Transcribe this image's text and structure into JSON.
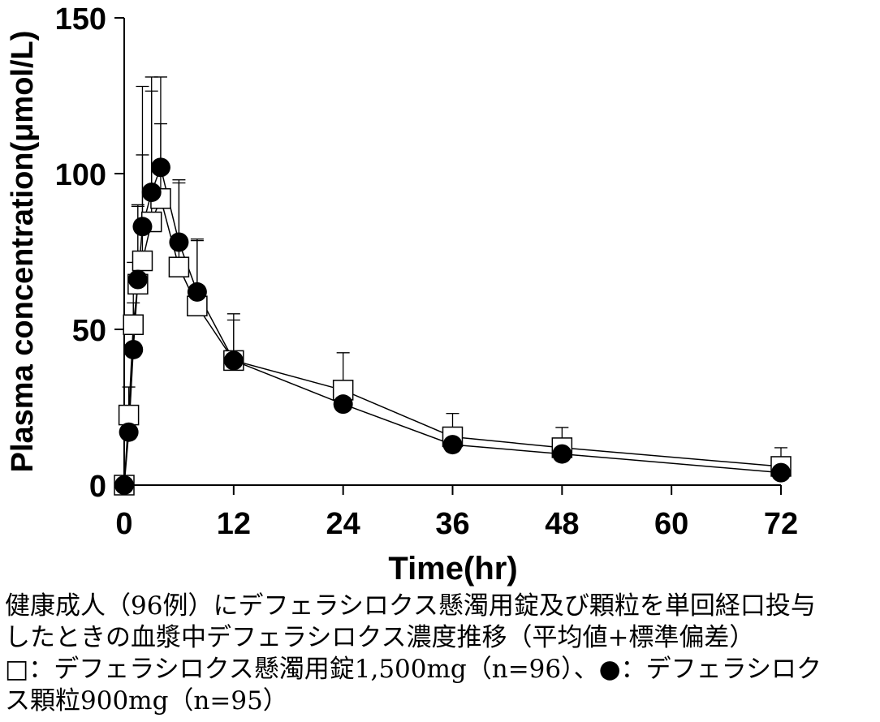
{
  "chart_data": {
    "type": "line",
    "title": "",
    "xlabel": "Time(hr)",
    "ylabel": "Plasma concentration(μmol/L)",
    "xlim": [
      0,
      72
    ],
    "ylim": [
      0,
      150
    ],
    "x_ticks": [
      0,
      12,
      24,
      36,
      48,
      60,
      72
    ],
    "y_ticks": [
      0,
      50,
      100,
      150
    ],
    "grid": false,
    "series": [
      {
        "marker": "open-square",
        "color": "#000000",
        "x": [
          0,
          0.5,
          1,
          1.5,
          2,
          3,
          4,
          6,
          8,
          12,
          24,
          36,
          48,
          72
        ],
        "y": [
          0,
          22.5,
          51.5,
          64.5,
          72,
          84.5,
          92,
          70,
          57.5,
          40,
          30.5,
          15.5,
          12,
          6
        ],
        "y_err_upper": [
          0,
          9,
          20,
          25,
          34,
          42,
          39,
          27,
          21,
          15,
          12,
          7.5,
          6.5,
          6
        ]
      },
      {
        "marker": "filled-circle",
        "color": "#000000",
        "x": [
          0,
          0.5,
          1,
          1.5,
          2,
          3,
          4,
          6,
          8,
          12,
          24,
          36,
          48,
          72
        ],
        "y": [
          0,
          17,
          43.5,
          66,
          83,
          94,
          102,
          78,
          62,
          40,
          26,
          13,
          10,
          4
        ],
        "y_err_upper": [
          0,
          6,
          15,
          24,
          45,
          37,
          14,
          20,
          17,
          13,
          6.5,
          4,
          3,
          4
        ]
      }
    ]
  },
  "caption": {
    "lines": [
      "健康成人（96例）にデフェラシロクス懸濁用錠及び顆粒を単回経口投与",
      "したときの血漿中デフェラシロクス濃度推移（平均値+標準偏差）",
      "□：デフェラシロクス懸濁用錠1,500mg（n=96）、●：デフェラシロク",
      "ス顆粒900mg（n=95）"
    ]
  }
}
